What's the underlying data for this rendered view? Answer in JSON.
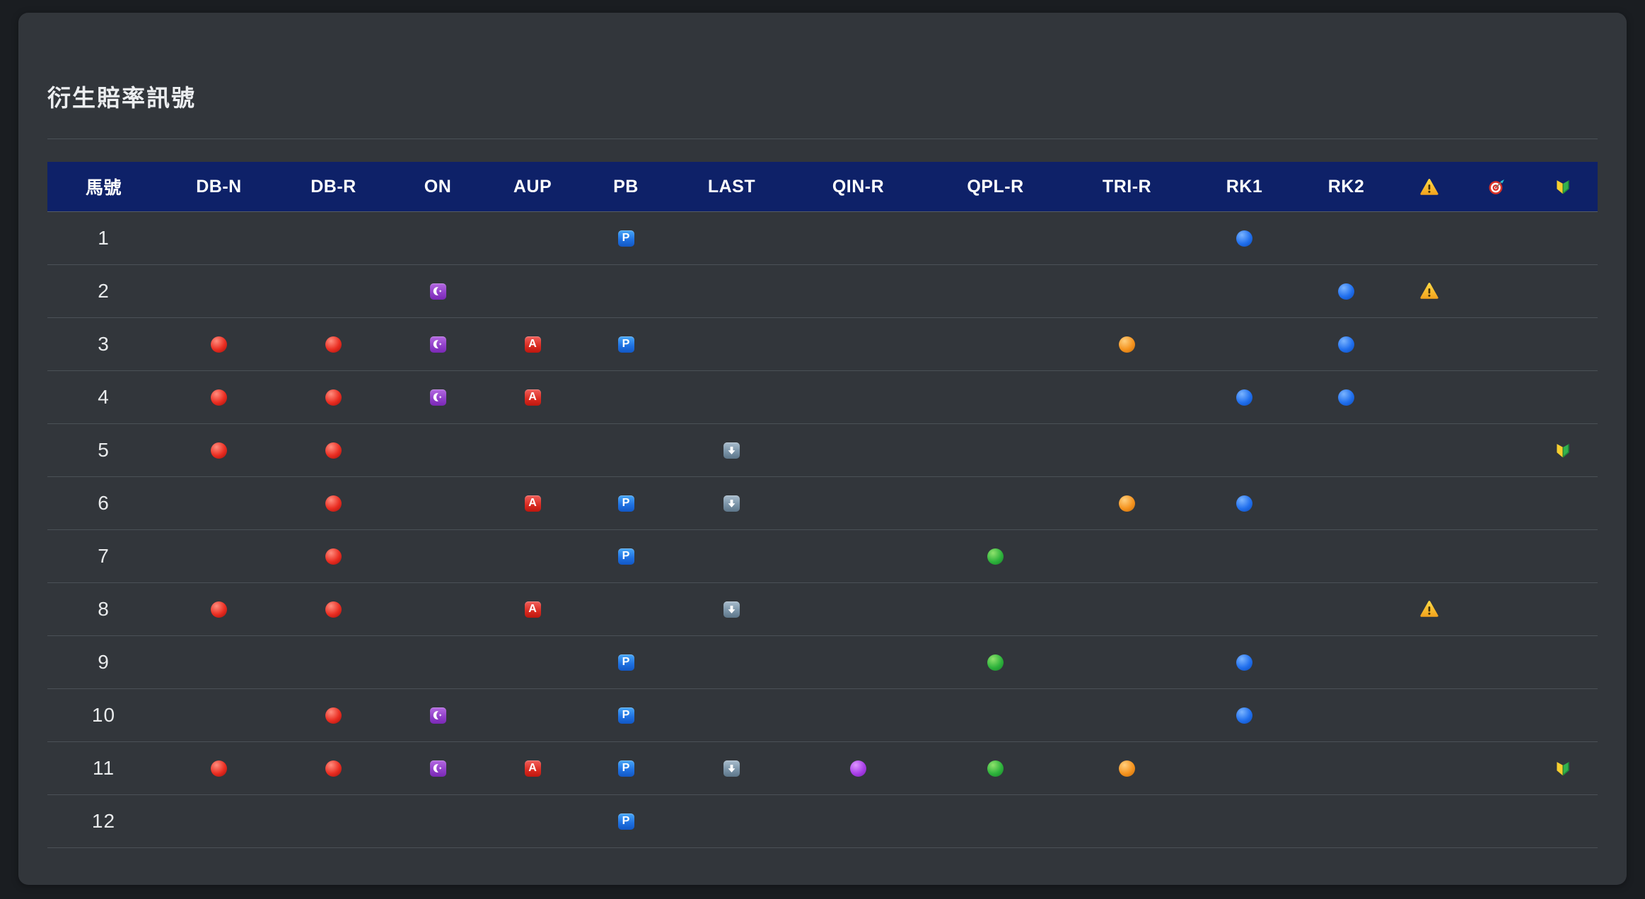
{
  "title": "衍生賠率訊號",
  "colors": {
    "page_bg": "#1a1d21",
    "card_bg": "#32363b",
    "header_bg": "#0e2168",
    "divider": "#4b5157",
    "text": "#eceef0",
    "signal_red": "#ea2d21",
    "signal_orange": "#f5941f",
    "signal_blue": "#2170ee",
    "signal_green": "#2eb33c",
    "signal_purple": "#a93fe8"
  },
  "table": {
    "columns": [
      {
        "key": "num",
        "label": "馬號"
      },
      {
        "key": "dbn",
        "label": "DB-N"
      },
      {
        "key": "dbr",
        "label": "DB-R"
      },
      {
        "key": "on",
        "label": "ON"
      },
      {
        "key": "aup",
        "label": "AUP"
      },
      {
        "key": "pb",
        "label": "PB"
      },
      {
        "key": "last",
        "label": "LAST"
      },
      {
        "key": "qinr",
        "label": "QIN-R"
      },
      {
        "key": "qplr",
        "label": "QPL-R"
      },
      {
        "key": "trir",
        "label": "TRI-R"
      },
      {
        "key": "rk1",
        "label": "RK1"
      },
      {
        "key": "rk2",
        "label": "RK2"
      },
      {
        "key": "warn",
        "header_icon": "warning"
      },
      {
        "key": "target",
        "header_icon": "target"
      },
      {
        "key": "beginner",
        "header_icon": "beginner"
      }
    ],
    "icon_legend": {
      "red-circle": "🔴",
      "orange-circle": "🟠",
      "blue-circle": "🔵",
      "green-circle": "🟢",
      "purple-circle": "🟣",
      "crescent-badge": "☪️",
      "a-badge": "🅰️",
      "p-badge": "🅿️",
      "down-badge": "⬇️",
      "warning": "⚠️",
      "target": "🎯",
      "beginner": "🔰"
    },
    "rows": [
      {
        "num": "1",
        "cells": {
          "pb": "p-badge",
          "rk1": "blue-circle"
        }
      },
      {
        "num": "2",
        "cells": {
          "on": "crescent-badge",
          "rk2": "blue-circle",
          "warn": "warning"
        }
      },
      {
        "num": "3",
        "cells": {
          "dbn": "red-circle",
          "dbr": "red-circle",
          "on": "crescent-badge",
          "aup": "a-badge",
          "pb": "p-badge",
          "trir": "orange-circle",
          "rk2": "blue-circle"
        }
      },
      {
        "num": "4",
        "cells": {
          "dbn": "red-circle",
          "dbr": "red-circle",
          "on": "crescent-badge",
          "aup": "a-badge",
          "rk1": "blue-circle",
          "rk2": "blue-circle"
        }
      },
      {
        "num": "5",
        "cells": {
          "dbn": "red-circle",
          "dbr": "red-circle",
          "last": "down-badge",
          "beginner": "beginner"
        }
      },
      {
        "num": "6",
        "cells": {
          "dbr": "red-circle",
          "aup": "a-badge",
          "pb": "p-badge",
          "last": "down-badge",
          "trir": "orange-circle",
          "rk1": "blue-circle"
        }
      },
      {
        "num": "7",
        "cells": {
          "dbr": "red-circle",
          "pb": "p-badge",
          "qplr": "green-circle"
        }
      },
      {
        "num": "8",
        "cells": {
          "dbn": "red-circle",
          "dbr": "red-circle",
          "aup": "a-badge",
          "last": "down-badge",
          "warn": "warning"
        }
      },
      {
        "num": "9",
        "cells": {
          "pb": "p-badge",
          "qplr": "green-circle",
          "rk1": "blue-circle"
        }
      },
      {
        "num": "10",
        "cells": {
          "dbr": "red-circle",
          "on": "crescent-badge",
          "pb": "p-badge",
          "rk1": "blue-circle"
        }
      },
      {
        "num": "11",
        "cells": {
          "dbn": "red-circle",
          "dbr": "red-circle",
          "on": "crescent-badge",
          "aup": "a-badge",
          "pb": "p-badge",
          "last": "down-badge",
          "qinr": "purple-circle",
          "qplr": "green-circle",
          "trir": "orange-circle",
          "beginner": "beginner"
        }
      },
      {
        "num": "12",
        "cells": {
          "pb": "p-badge"
        }
      }
    ]
  }
}
